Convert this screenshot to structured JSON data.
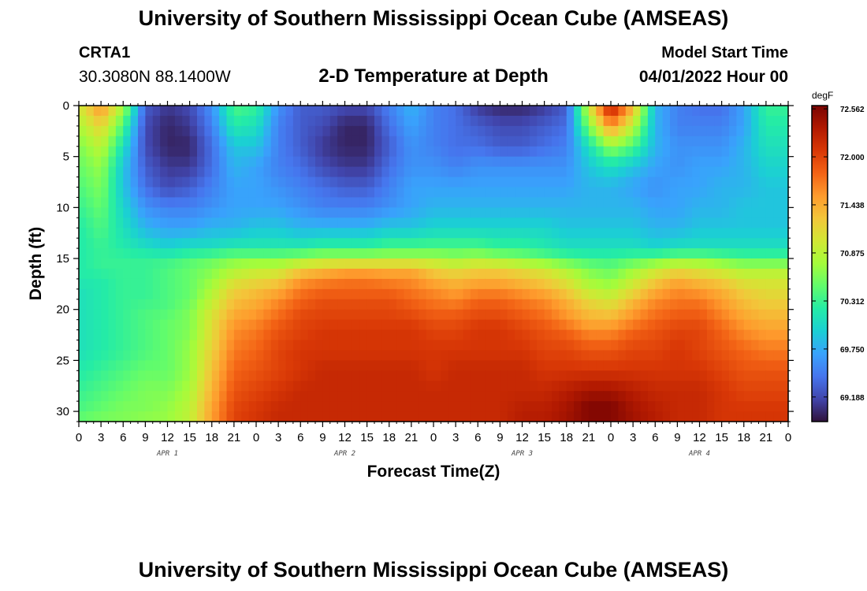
{
  "header": {
    "title": "University of Southern Mississippi Ocean Cube (AMSEAS)",
    "station": "CRTA1",
    "coords": "30.3080N  88.1400W",
    "subtitle": "2-D Temperature at Depth",
    "model_start_label": "Model Start Time",
    "model_start_value": "04/01/2022 Hour 00"
  },
  "footer": {
    "title": "University of Southern Mississippi Ocean Cube (AMSEAS)"
  },
  "chart_data": {
    "type": "heatmap",
    "title": "2-D Temperature at Depth",
    "xlabel": "Forecast Time(Z)",
    "ylabel": "Depth (ft)",
    "x_range_hours": [
      0,
      96
    ],
    "x_ticks_hours": [
      0,
      3,
      6,
      9,
      12,
      15,
      18,
      21,
      24,
      27,
      30,
      33,
      36,
      39,
      42,
      45,
      48,
      51,
      54,
      57,
      60,
      63,
      66,
      69,
      72,
      75,
      78,
      81,
      84,
      87,
      90,
      93,
      96
    ],
    "x_tick_labels": [
      "0",
      "3",
      "6",
      "9",
      "12",
      "15",
      "18",
      "21",
      "0",
      "3",
      "6",
      "9",
      "12",
      "15",
      "18",
      "21",
      "0",
      "3",
      "6",
      "9",
      "12",
      "15",
      "18",
      "21",
      "0",
      "3",
      "6",
      "9",
      "12",
      "15",
      "18",
      "21",
      "0"
    ],
    "day_labels": [
      {
        "text": "APR 1",
        "hour": 12
      },
      {
        "text": "APR 2",
        "hour": 36
      },
      {
        "text": "APR 3",
        "hour": 60
      },
      {
        "text": "APR 4",
        "hour": 84
      }
    ],
    "ylim": [
      0,
      31
    ],
    "y_ticks": [
      0,
      5,
      10,
      15,
      20,
      25,
      30
    ],
    "y_tick_labels": [
      "0",
      "5",
      "10",
      "15",
      "20",
      "25",
      "30"
    ],
    "colorbar": {
      "unit": "degF",
      "min": 68.9,
      "max": 72.6,
      "tick_values": [
        72.562,
        72.0,
        71.438,
        70.875,
        70.312,
        69.75,
        69.188
      ],
      "tick_labels": [
        "72.562",
        "72.000",
        "71.438",
        "70.875",
        "70.312",
        "69.750",
        "69.188"
      ],
      "colormap": [
        "#30123b",
        "#4145ab",
        "#4675ed",
        "#39a2fc",
        "#1bcfd4",
        "#24eca6",
        "#61fc6c",
        "#a4fc3b",
        "#d1e834",
        "#f3c63a",
        "#fe9b2d",
        "#f36315",
        "#d93806",
        "#b11901",
        "#7a0402"
      ]
    },
    "grid_hours": [
      0,
      3,
      6,
      9,
      12,
      15,
      18,
      21,
      24,
      27,
      30,
      33,
      36,
      39,
      42,
      45,
      48,
      51,
      54,
      57,
      60,
      63,
      66,
      69,
      72,
      75,
      78,
      81,
      84,
      87,
      90,
      93,
      96
    ],
    "grid_depths": [
      0,
      2,
      4,
      6,
      8,
      10,
      12,
      14,
      15,
      16,
      17,
      18,
      19,
      20,
      21,
      22,
      24,
      26,
      28,
      30,
      31
    ],
    "temperature_degF": [
      [
        71.0,
        71.6,
        70.8,
        69.3,
        69.1,
        69.2,
        69.6,
        70.4,
        70.3,
        69.6,
        69.3,
        69.3,
        69.2,
        69.2,
        69.5,
        69.8,
        69.5,
        69.4,
        69.1,
        69.0,
        69.0,
        69.1,
        69.3,
        71.0,
        72.4,
        71.4,
        69.8,
        69.5,
        69.4,
        69.4,
        69.7,
        70.3,
        70.3
      ],
      [
        70.8,
        71.2,
        70.4,
        69.2,
        69.0,
        69.1,
        69.5,
        70.2,
        70.1,
        69.5,
        69.3,
        69.2,
        69.0,
        69.0,
        69.4,
        69.7,
        69.5,
        69.4,
        69.3,
        69.2,
        69.2,
        69.3,
        69.4,
        70.6,
        71.6,
        70.9,
        69.8,
        69.5,
        69.5,
        69.5,
        69.7,
        70.2,
        70.2
      ],
      [
        70.6,
        70.9,
        70.1,
        69.2,
        69.0,
        69.0,
        69.4,
        69.9,
        69.9,
        69.5,
        69.3,
        69.1,
        69.0,
        69.0,
        69.3,
        69.6,
        69.5,
        69.4,
        69.4,
        69.3,
        69.3,
        69.4,
        69.5,
        70.1,
        70.7,
        70.4,
        69.8,
        69.6,
        69.6,
        69.6,
        69.8,
        70.1,
        70.1
      ],
      [
        70.5,
        70.7,
        69.9,
        69.3,
        69.1,
        69.1,
        69.4,
        69.8,
        69.7,
        69.5,
        69.4,
        69.2,
        69.1,
        69.1,
        69.4,
        69.6,
        69.6,
        69.5,
        69.6,
        69.6,
        69.6,
        69.6,
        69.6,
        69.9,
        70.1,
        69.9,
        69.7,
        69.6,
        69.7,
        69.7,
        69.8,
        70.0,
        70.0
      ],
      [
        70.4,
        70.6,
        69.9,
        69.4,
        69.2,
        69.3,
        69.5,
        69.7,
        69.7,
        69.6,
        69.5,
        69.4,
        69.3,
        69.3,
        69.5,
        69.7,
        69.7,
        69.7,
        69.7,
        69.7,
        69.7,
        69.7,
        69.7,
        69.8,
        69.8,
        69.7,
        69.6,
        69.7,
        69.7,
        69.8,
        69.8,
        69.9,
        69.9
      ],
      [
        70.3,
        70.5,
        70.0,
        69.6,
        69.5,
        69.5,
        69.6,
        69.7,
        69.7,
        69.7,
        69.6,
        69.5,
        69.5,
        69.5,
        69.6,
        69.7,
        69.8,
        69.8,
        69.8,
        69.8,
        69.8,
        69.8,
        69.8,
        69.8,
        69.8,
        69.8,
        69.7,
        69.7,
        69.8,
        69.8,
        69.9,
        69.9,
        69.9
      ],
      [
        70.2,
        70.4,
        70.1,
        69.8,
        69.7,
        69.7,
        69.8,
        69.8,
        69.9,
        69.9,
        69.8,
        69.8,
        69.8,
        69.8,
        69.9,
        69.9,
        70.0,
        70.0,
        70.0,
        70.0,
        70.0,
        70.0,
        69.9,
        69.9,
        69.9,
        69.9,
        69.8,
        69.8,
        69.9,
        69.9,
        69.9,
        69.9,
        69.9
      ],
      [
        70.2,
        70.3,
        70.2,
        70.1,
        70.0,
        70.1,
        70.1,
        70.2,
        70.2,
        70.2,
        70.2,
        70.3,
        70.3,
        70.3,
        70.4,
        70.4,
        70.4,
        70.4,
        70.4,
        70.3,
        70.3,
        70.2,
        70.1,
        70.1,
        70.1,
        70.1,
        70.0,
        70.1,
        70.1,
        70.1,
        70.1,
        70.1,
        70.1
      ],
      [
        70.2,
        70.3,
        70.3,
        70.3,
        70.3,
        70.4,
        70.5,
        70.6,
        70.6,
        70.6,
        70.7,
        70.8,
        70.8,
        70.8,
        70.8,
        70.8,
        70.8,
        70.7,
        70.8,
        70.7,
        70.6,
        70.5,
        70.4,
        70.3,
        70.3,
        70.4,
        70.5,
        70.6,
        70.6,
        70.5,
        70.4,
        70.4,
        70.4
      ],
      [
        70.2,
        70.3,
        70.3,
        70.3,
        70.4,
        70.5,
        70.6,
        70.8,
        70.9,
        70.9,
        71.2,
        71.3,
        71.4,
        71.4,
        71.4,
        71.4,
        71.2,
        71.1,
        71.2,
        71.2,
        71.1,
        71.0,
        70.8,
        70.6,
        70.5,
        70.7,
        70.9,
        71.1,
        71.0,
        70.9,
        70.8,
        70.8,
        70.8
      ],
      [
        70.2,
        70.2,
        70.3,
        70.3,
        70.4,
        70.5,
        70.7,
        71.0,
        71.1,
        71.2,
        71.5,
        71.6,
        71.7,
        71.7,
        71.6,
        71.6,
        71.4,
        71.3,
        71.4,
        71.4,
        71.3,
        71.2,
        71.0,
        70.7,
        70.6,
        70.9,
        71.2,
        71.4,
        71.3,
        71.2,
        71.0,
        71.0,
        71.0
      ],
      [
        70.1,
        70.2,
        70.3,
        70.3,
        70.4,
        70.5,
        70.8,
        71.2,
        71.3,
        71.4,
        71.7,
        71.8,
        71.8,
        71.8,
        71.8,
        71.7,
        71.6,
        71.5,
        71.6,
        71.6,
        71.5,
        71.4,
        71.2,
        70.9,
        70.8,
        71.1,
        71.4,
        71.6,
        71.5,
        71.4,
        71.2,
        71.1,
        71.1
      ],
      [
        70.1,
        70.2,
        70.3,
        70.3,
        70.4,
        70.5,
        70.9,
        71.3,
        71.4,
        71.6,
        71.8,
        71.9,
        71.9,
        71.9,
        71.9,
        71.8,
        71.7,
        71.6,
        71.8,
        71.8,
        71.7,
        71.6,
        71.4,
        71.1,
        71.0,
        71.3,
        71.6,
        71.7,
        71.7,
        71.5,
        71.3,
        71.2,
        71.2
      ],
      [
        70.1,
        70.2,
        70.3,
        70.4,
        70.4,
        70.6,
        71.0,
        71.4,
        71.5,
        71.7,
        71.9,
        72.0,
        72.0,
        72.0,
        72.0,
        71.9,
        71.8,
        71.8,
        71.9,
        71.9,
        71.8,
        71.7,
        71.5,
        71.3,
        71.2,
        71.5,
        71.7,
        71.8,
        71.8,
        71.6,
        71.4,
        71.3,
        71.3
      ],
      [
        70.1,
        70.2,
        70.3,
        70.4,
        70.5,
        70.6,
        71.1,
        71.5,
        71.6,
        71.8,
        72.0,
        72.0,
        72.0,
        72.0,
        72.0,
        72.0,
        71.9,
        71.9,
        72.0,
        72.0,
        71.9,
        71.8,
        71.6,
        71.4,
        71.4,
        71.6,
        71.8,
        71.9,
        71.9,
        71.7,
        71.5,
        71.4,
        71.4
      ],
      [
        70.1,
        70.2,
        70.3,
        70.4,
        70.5,
        70.6,
        71.1,
        71.6,
        71.7,
        71.9,
        72.0,
        72.1,
        72.1,
        72.1,
        72.1,
        72.1,
        72.0,
        72.0,
        72.1,
        72.1,
        72.0,
        71.9,
        71.8,
        71.6,
        71.6,
        71.8,
        71.9,
        72.0,
        72.0,
        71.8,
        71.6,
        71.5,
        71.5
      ],
      [
        70.1,
        70.2,
        70.3,
        70.4,
        70.5,
        70.7,
        71.2,
        71.7,
        71.8,
        72.0,
        72.1,
        72.1,
        72.1,
        72.1,
        72.1,
        72.1,
        72.1,
        72.1,
        72.1,
        72.1,
        72.1,
        72.0,
        72.0,
        71.9,
        71.9,
        72.0,
        72.0,
        72.1,
        72.0,
        71.9,
        71.8,
        71.7,
        71.7
      ],
      [
        70.2,
        70.3,
        70.4,
        70.5,
        70.5,
        70.7,
        71.3,
        71.8,
        71.9,
        72.0,
        72.1,
        72.2,
        72.2,
        72.2,
        72.2,
        72.2,
        72.1,
        72.2,
        72.2,
        72.2,
        72.2,
        72.1,
        72.1,
        72.1,
        72.1,
        72.1,
        72.1,
        72.1,
        72.1,
        72.0,
        71.9,
        71.9,
        71.9
      ],
      [
        70.3,
        70.4,
        70.5,
        70.6,
        70.6,
        70.8,
        71.4,
        71.9,
        72.0,
        72.1,
        72.2,
        72.2,
        72.2,
        72.2,
        72.2,
        72.2,
        72.2,
        72.2,
        72.2,
        72.2,
        72.2,
        72.2,
        72.3,
        72.4,
        72.4,
        72.3,
        72.2,
        72.2,
        72.2,
        72.1,
        72.0,
        72.0,
        72.0
      ],
      [
        70.4,
        70.5,
        70.6,
        70.6,
        70.7,
        70.9,
        71.5,
        72.0,
        72.1,
        72.2,
        72.2,
        72.2,
        72.2,
        72.2,
        72.2,
        72.2,
        72.2,
        72.2,
        72.2,
        72.2,
        72.3,
        72.3,
        72.4,
        72.6,
        72.6,
        72.4,
        72.3,
        72.2,
        72.2,
        72.1,
        72.1,
        72.1,
        72.1
      ],
      [
        70.5,
        70.6,
        70.6,
        70.7,
        70.7,
        70.9,
        71.5,
        72.0,
        72.1,
        72.2,
        72.2,
        72.2,
        72.2,
        72.2,
        72.2,
        72.2,
        72.2,
        72.2,
        72.2,
        72.2,
        72.3,
        72.3,
        72.4,
        72.5,
        72.5,
        72.4,
        72.3,
        72.2,
        72.2,
        72.1,
        72.1,
        72.1,
        72.1
      ]
    ]
  }
}
